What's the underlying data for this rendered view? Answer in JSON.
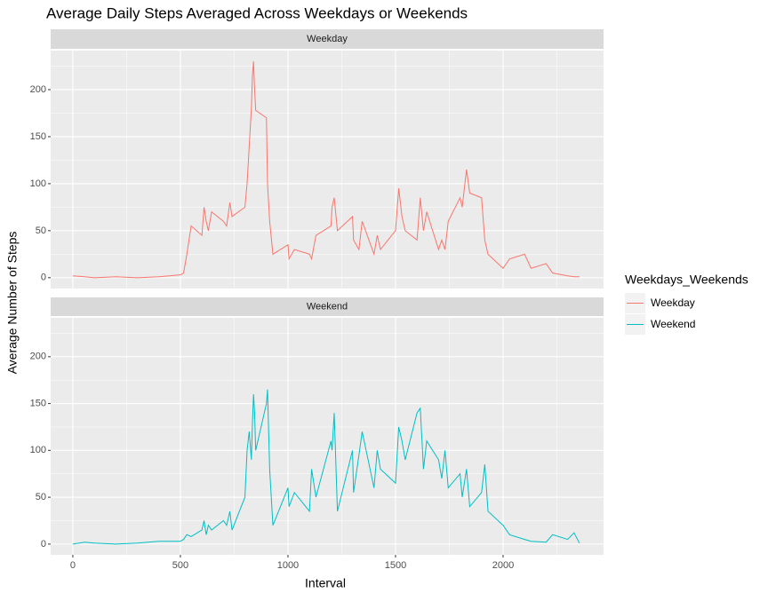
{
  "chart_data": {
    "type": "line",
    "title": "Average Daily Steps Averaged Across Weekdays or Weekends",
    "xlabel": "Interval",
    "ylabel": "Average Number of Steps",
    "legend_title": "Weekdays_Weekends",
    "legend_position": "right",
    "facets": true,
    "grid": true,
    "xlim": [
      -103,
      2467
    ],
    "ylim": [
      -11.5,
      241.5
    ],
    "xticks": [
      0,
      500,
      1000,
      1500,
      2000
    ],
    "yticks": [
      0,
      50,
      100,
      150,
      200
    ],
    "xminor": [
      250,
      750,
      1250,
      1750,
      2250
    ],
    "yminor": [
      25,
      75,
      125,
      175,
      225
    ],
    "x": [
      0,
      55,
      100,
      200,
      300,
      400,
      500,
      515,
      530,
      550,
      600,
      610,
      620,
      630,
      645,
      700,
      715,
      730,
      740,
      800,
      810,
      820,
      830,
      835,
      840,
      845,
      850,
      900,
      905,
      915,
      930,
      1000,
      1005,
      1030,
      1100,
      1110,
      1130,
      1200,
      1205,
      1215,
      1230,
      1300,
      1305,
      1330,
      1345,
      1400,
      1415,
      1430,
      1500,
      1515,
      1530,
      1545,
      1600,
      1615,
      1630,
      1645,
      1700,
      1715,
      1730,
      1745,
      1800,
      1810,
      1830,
      1845,
      1900,
      1915,
      1930,
      2000,
      2030,
      2100,
      2130,
      2200,
      2230,
      2300,
      2330,
      2355
    ],
    "series": [
      {
        "name": "Weekday",
        "color": "#F8766D",
        "values": [
          2,
          1,
          0,
          1,
          0,
          1,
          3,
          5,
          25,
          55,
          45,
          75,
          60,
          50,
          70,
          60,
          55,
          80,
          65,
          75,
          100,
          140,
          180,
          215,
          230,
          200,
          178,
          170,
          100,
          60,
          25,
          35,
          20,
          30,
          25,
          20,
          45,
          55,
          75,
          85,
          50,
          65,
          40,
          30,
          60,
          25,
          45,
          30,
          50,
          95,
          65,
          50,
          40,
          85,
          50,
          70,
          30,
          40,
          30,
          60,
          85,
          75,
          115,
          90,
          85,
          40,
          25,
          10,
          20,
          25,
          10,
          15,
          5,
          2,
          1,
          1
        ]
      },
      {
        "name": "Weekend",
        "color": "#00BFC4",
        "values": [
          0,
          2,
          1,
          0,
          1,
          3,
          3,
          5,
          10,
          8,
          15,
          25,
          10,
          20,
          15,
          25,
          20,
          35,
          15,
          50,
          100,
          120,
          90,
          130,
          160,
          140,
          100,
          150,
          165,
          80,
          20,
          60,
          40,
          55,
          35,
          80,
          50,
          110,
          100,
          140,
          35,
          100,
          55,
          95,
          120,
          60,
          100,
          80,
          65,
          125,
          110,
          90,
          140,
          145,
          80,
          110,
          90,
          70,
          100,
          60,
          75,
          50,
          80,
          40,
          55,
          85,
          35,
          20,
          10,
          5,
          3,
          2,
          10,
          5,
          12,
          1
        ]
      }
    ]
  }
}
